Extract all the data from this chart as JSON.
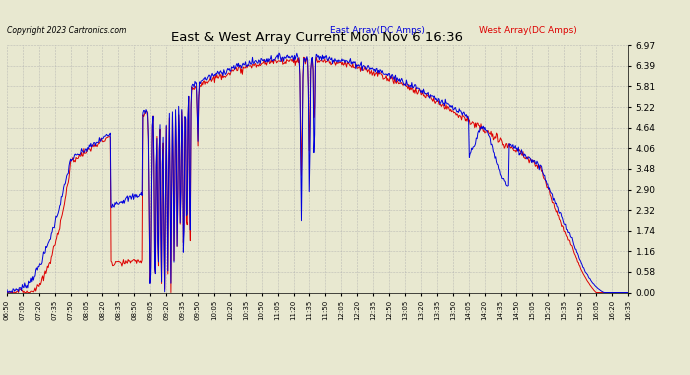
{
  "title": "East & West Array Current Mon Nov 6 16:36",
  "copyright": "Copyright 2023 Cartronics.com",
  "legend_east": "East Array(DC Amps)",
  "legend_west": "West Array(DC Amps)",
  "east_color": "#0000dd",
  "west_color": "#dd0000",
  "background_color": "#e8e8d0",
  "grid_color": "#b0b0b0",
  "yticks": [
    0.0,
    0.58,
    1.16,
    1.74,
    2.32,
    2.9,
    3.48,
    4.06,
    4.64,
    5.22,
    5.81,
    6.39,
    6.97
  ],
  "ymin": 0.0,
  "ymax": 6.97,
  "x_labels": [
    "06:50",
    "07:05",
    "07:20",
    "07:35",
    "07:50",
    "08:05",
    "08:20",
    "08:35",
    "08:50",
    "09:05",
    "09:20",
    "09:35",
    "09:50",
    "10:05",
    "10:20",
    "10:35",
    "10:50",
    "11:05",
    "11:20",
    "11:35",
    "11:50",
    "12:05",
    "12:20",
    "12:35",
    "12:50",
    "13:05",
    "13:20",
    "13:35",
    "13:50",
    "14:05",
    "14:20",
    "14:35",
    "14:50",
    "15:05",
    "15:20",
    "15:35",
    "15:50",
    "16:05",
    "16:20",
    "16:35"
  ]
}
